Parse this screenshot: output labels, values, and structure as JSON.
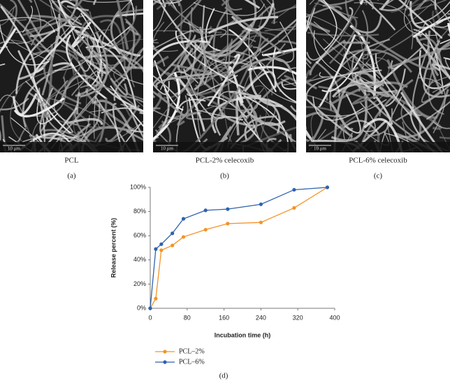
{
  "panels": [
    {
      "caption": "PCL",
      "letter": "(a)",
      "scale_bar": "10 μm"
    },
    {
      "caption": "PCL-2% celecoxib",
      "letter": "(b)",
      "scale_bar": "10 μm"
    },
    {
      "caption": "PCL-6% celecoxib",
      "letter": "(c)",
      "scale_bar": "10 μm"
    }
  ],
  "chart_data": {
    "type": "line",
    "letter": "(d)",
    "xlabel": "Incubation time (h)",
    "ylabel": "Release percent (%)",
    "x": [
      0,
      12,
      24,
      48,
      72,
      120,
      168,
      240,
      312,
      384
    ],
    "series": [
      {
        "name": "PCL–2%",
        "color": "#f39325",
        "values": [
          0,
          8,
          48,
          52,
          59,
          65,
          70,
          71,
          83,
          100
        ]
      },
      {
        "name": "PCL–6%",
        "color": "#2e62ad",
        "values": [
          0,
          49,
          53,
          62,
          74,
          81,
          82,
          86,
          98,
          100
        ]
      }
    ],
    "xlim": [
      0,
      400
    ],
    "xticks": [
      0,
      80,
      160,
      240,
      320,
      400
    ],
    "ylim": [
      0,
      100
    ],
    "yticks": [
      {
        "value": 0,
        "label": "0%"
      },
      {
        "value": 20,
        "label": "20%"
      },
      {
        "value": 40,
        "label": "40%"
      },
      {
        "value": 60,
        "label": "60%"
      },
      {
        "value": 80,
        "label": "80%"
      },
      {
        "value": 100,
        "label": "100%"
      }
    ],
    "legend": "bottom-left"
  }
}
